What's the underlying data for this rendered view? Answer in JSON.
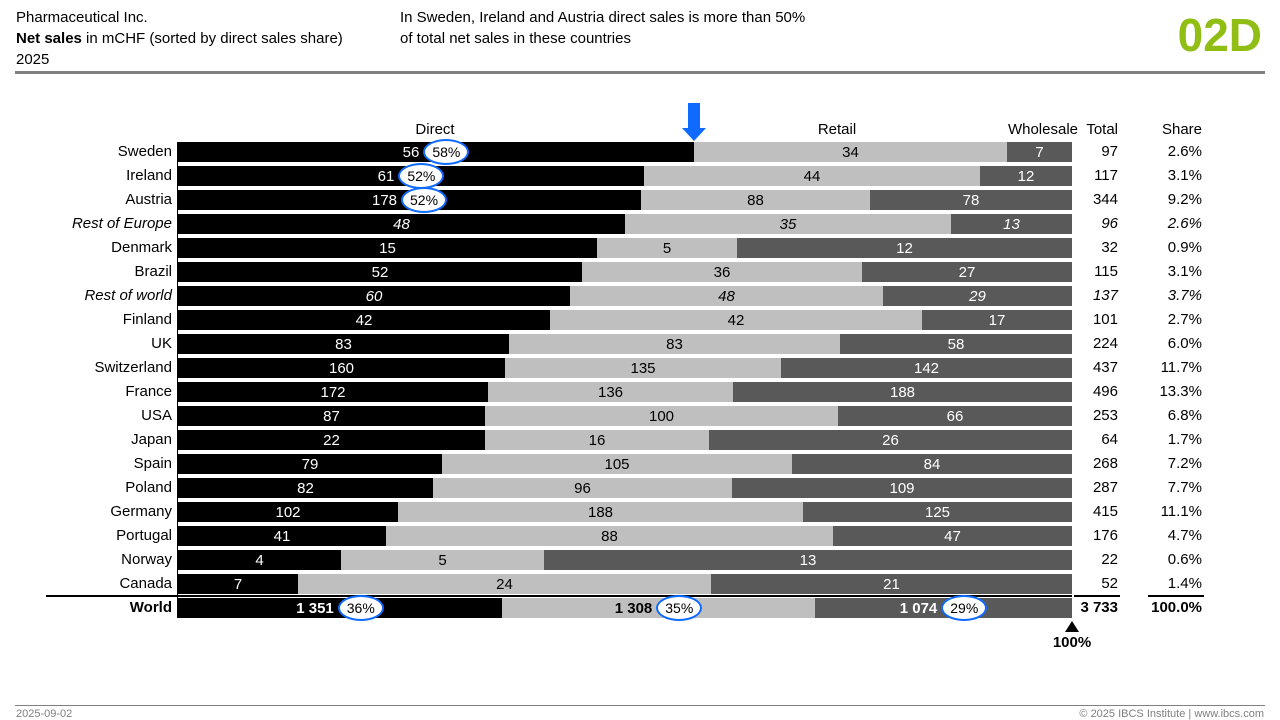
{
  "header": {
    "company": "Pharmaceutical Inc.",
    "title_bold": "Net sales",
    "title_rest": " in mCHF (sorted by direct sales share)",
    "period": "2025"
  },
  "message": {
    "line1": "In Sweden, Ireland and Austria direct sales is more than 50%",
    "line2": "of total net sales in these countries"
  },
  "page_code": "02D",
  "colors": {
    "accent_green": "#90BE15",
    "highlight_blue": "#0F6BFF",
    "bar_direct": "#000000",
    "bar_retail": "#BFBFBF",
    "bar_wholesale": "#595959",
    "gray_text": "#7f7f7f"
  },
  "chart_data": {
    "type": "bar",
    "subtype": "horizontal-100pct-stacked",
    "title": "Pharmaceutical Inc. Net sales in mCHF (sorted by direct sales share) 2025",
    "legend_position": "column headers above bars",
    "columns": {
      "direct": "Direct",
      "retail": "Retail",
      "wholesale": "Wholesale",
      "total": "Total",
      "share": "Share"
    },
    "rows": [
      {
        "label": "Sweden",
        "direct": 56,
        "retail": 34,
        "wholesale": 7,
        "total": 97,
        "share": "2.6%",
        "direct_pct": "58%"
      },
      {
        "label": "Ireland",
        "direct": 61,
        "retail": 44,
        "wholesale": 12,
        "total": 117,
        "share": "3.1%",
        "direct_pct": "52%"
      },
      {
        "label": "Austria",
        "direct": 178,
        "retail": 88,
        "wholesale": 78,
        "total": 344,
        "share": "9.2%",
        "direct_pct": "52%"
      },
      {
        "label": "Rest of Europe",
        "direct": 48,
        "retail": 35,
        "wholesale": 13,
        "total": 96,
        "share": "2.6%",
        "italic": true
      },
      {
        "label": "Denmark",
        "direct": 15,
        "retail": 5,
        "wholesale": 12,
        "total": 32,
        "share": "0.9%"
      },
      {
        "label": "Brazil",
        "direct": 52,
        "retail": 36,
        "wholesale": 27,
        "total": 115,
        "share": "3.1%"
      },
      {
        "label": "Rest of world",
        "direct": 60,
        "retail": 48,
        "wholesale": 29,
        "total": 137,
        "share": "3.7%",
        "italic": true
      },
      {
        "label": "Finland",
        "direct": 42,
        "retail": 42,
        "wholesale": 17,
        "total": 101,
        "share": "2.7%"
      },
      {
        "label": "UK",
        "direct": 83,
        "retail": 83,
        "wholesale": 58,
        "total": 224,
        "share": "6.0%"
      },
      {
        "label": "Switzerland",
        "direct": 160,
        "retail": 135,
        "wholesale": 142,
        "total": 437,
        "share": "11.7%"
      },
      {
        "label": "France",
        "direct": 172,
        "retail": 136,
        "wholesale": 188,
        "total": 496,
        "share": "13.3%"
      },
      {
        "label": "USA",
        "direct": 87,
        "retail": 100,
        "wholesale": 66,
        "total": 253,
        "share": "6.8%"
      },
      {
        "label": "Japan",
        "direct": 22,
        "retail": 16,
        "wholesale": 26,
        "total": 64,
        "share": "1.7%"
      },
      {
        "label": "Spain",
        "direct": 79,
        "retail": 105,
        "wholesale": 84,
        "total": 268,
        "share": "7.2%"
      },
      {
        "label": "Poland",
        "direct": 82,
        "retail": 96,
        "wholesale": 109,
        "total": 287,
        "share": "7.7%"
      },
      {
        "label": "Germany",
        "direct": 102,
        "retail": 188,
        "wholesale": 125,
        "total": 415,
        "share": "11.1%"
      },
      {
        "label": "Portugal",
        "direct": 41,
        "retail": 88,
        "wholesale": 47,
        "total": 176,
        "share": "4.7%"
      },
      {
        "label": "Norway",
        "direct": 4,
        "retail": 5,
        "wholesale": 13,
        "total": 22,
        "share": "0.6%"
      },
      {
        "label": "Canada",
        "direct": 7,
        "retail": 24,
        "wholesale": 21,
        "total": 52,
        "share": "1.4%"
      }
    ],
    "world": {
      "label": "World",
      "direct": 1351,
      "retail": 1308,
      "wholesale": 1074,
      "total": 3733,
      "direct_display": "1 351",
      "retail_display": "1 308",
      "wholesale_display": "1 074",
      "total_display": "3 733",
      "direct_pct": "36%",
      "retail_pct": "35%",
      "wholesale_pct": "29%",
      "share": "100.0%"
    },
    "axis_marker": "100%",
    "annotations": {
      "arrow": "blue arrow pointing at 50%+ direct share boundary of Sweden bar",
      "highlight_ovals": "blue ellipses around 58%, 52%, 52% and world 36%, 35%, 29%"
    }
  },
  "footer": {
    "date": "2025-09-02",
    "copyright": "© 2025 IBCS Institute | www.ibcs.com"
  }
}
